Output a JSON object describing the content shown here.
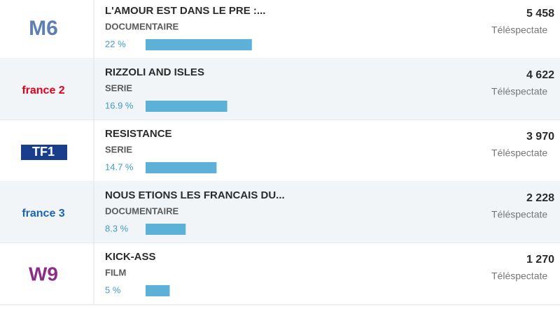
{
  "rows": [
    {
      "logo": "M6",
      "title": "L'AMOUR EST DANS LE PRE :...",
      "genre": "DOCUMENTAIRE",
      "share": {
        "value": 22,
        "label": "22 %"
      },
      "viewers": "5 458",
      "unit": "Téléspectate"
    },
    {
      "logo": "france 2",
      "title": "RIZZOLI AND ISLES",
      "genre": "SERIE",
      "share": {
        "value": 16.9,
        "label": "16.9 %"
      },
      "viewers": "4 622",
      "unit": "Téléspectate"
    },
    {
      "logo": "TF1",
      "title": "RESISTANCE",
      "genre": "SERIE",
      "share": {
        "value": 14.7,
        "label": "14.7 %"
      },
      "viewers": "3 970",
      "unit": "Téléspectate"
    },
    {
      "logo": "france 3",
      "title": "NOUS ETIONS LES FRANCAIS DU...",
      "genre": "DOCUMENTAIRE",
      "share": {
        "value": 8.3,
        "label": "8.3 %"
      },
      "viewers": "2 228",
      "unit": "Téléspectate"
    },
    {
      "logo": "W9",
      "title": "KICK-ASS",
      "genre": "FILM",
      "share": {
        "value": 5,
        "label": "5 %"
      },
      "viewers": "1 270",
      "unit": "Téléspectate"
    }
  ]
}
